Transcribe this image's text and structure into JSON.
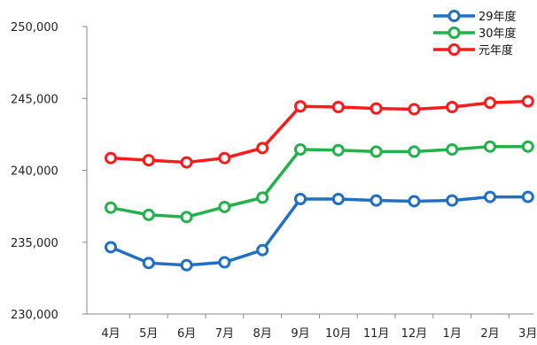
{
  "chart_data": {
    "type": "line",
    "categories": [
      "4月",
      "5月",
      "6月",
      "7月",
      "8月",
      "9月",
      "10月",
      "11月",
      "12月",
      "1月",
      "2月",
      "3月"
    ],
    "series": [
      {
        "name": "29年度",
        "color": "#1f6fc4",
        "values": [
          234650,
          233550,
          233400,
          233600,
          234450,
          238000,
          238000,
          237900,
          237850,
          237900,
          238150,
          238150
        ]
      },
      {
        "name": "30年度",
        "color": "#21b24a",
        "values": [
          237400,
          236900,
          236750,
          237450,
          238100,
          241450,
          241400,
          241300,
          241300,
          241450,
          241650,
          241650
        ]
      },
      {
        "name": "元年度",
        "color": "#ff1a1a",
        "values": [
          240850,
          240700,
          240550,
          240850,
          241550,
          244450,
          244400,
          244300,
          244250,
          244400,
          244700,
          244800
        ]
      }
    ],
    "ylim": [
      230000,
      250000
    ],
    "yticks": [
      230000,
      235000,
      240000,
      245000,
      250000
    ],
    "ytick_labels": [
      "230,000",
      "235,000",
      "240,000",
      "245,000",
      "250,000"
    ],
    "grid": false,
    "legend_position": "top-right"
  }
}
